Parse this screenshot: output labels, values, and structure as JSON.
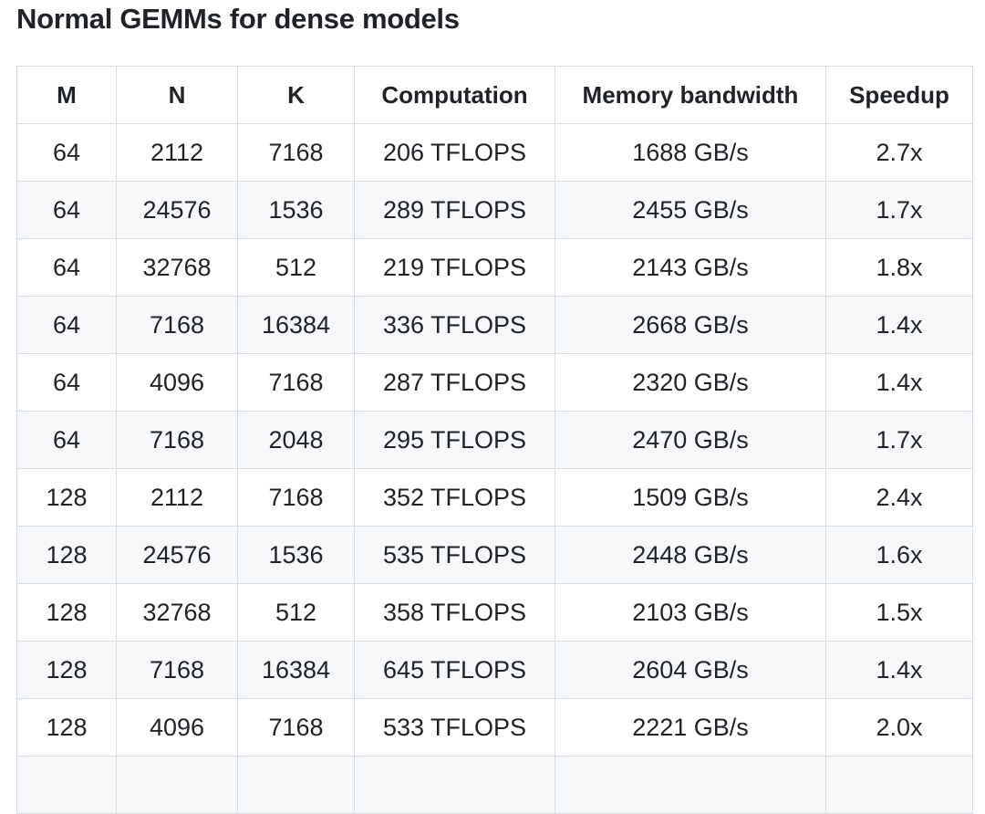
{
  "page": {
    "title": "Normal GEMMs for dense models"
  },
  "table": {
    "columns": [
      "M",
      "N",
      "K",
      "Computation",
      "Memory bandwidth",
      "Speedup"
    ],
    "column_keys": [
      "m",
      "n",
      "k",
      "computation",
      "memory-bandwidth",
      "speedup"
    ],
    "rows": [
      [
        "64",
        "2112",
        "7168",
        "206 TFLOPS",
        "1688 GB/s",
        "2.7x"
      ],
      [
        "64",
        "24576",
        "1536",
        "289 TFLOPS",
        "2455 GB/s",
        "1.7x"
      ],
      [
        "64",
        "32768",
        "512",
        "219 TFLOPS",
        "2143 GB/s",
        "1.8x"
      ],
      [
        "64",
        "7168",
        "16384",
        "336 TFLOPS",
        "2668 GB/s",
        "1.4x"
      ],
      [
        "64",
        "4096",
        "7168",
        "287 TFLOPS",
        "2320 GB/s",
        "1.4x"
      ],
      [
        "64",
        "7168",
        "2048",
        "295 TFLOPS",
        "2470 GB/s",
        "1.7x"
      ],
      [
        "128",
        "2112",
        "7168",
        "352 TFLOPS",
        "1509 GB/s",
        "2.4x"
      ],
      [
        "128",
        "24576",
        "1536",
        "535 TFLOPS",
        "2448 GB/s",
        "1.6x"
      ],
      [
        "128",
        "32768",
        "512",
        "358 TFLOPS",
        "2103 GB/s",
        "1.5x"
      ],
      [
        "128",
        "7168",
        "16384",
        "645 TFLOPS",
        "2604 GB/s",
        "1.4x"
      ],
      [
        "128",
        "4096",
        "7168",
        "533 TFLOPS",
        "2221 GB/s",
        "2.0x"
      ]
    ],
    "partial_row_visible": true
  },
  "colors": {
    "text": "#1f2328",
    "border": "#d6dce3",
    "row_alt_bg": "#f6f8fa",
    "background": "#ffffff"
  }
}
